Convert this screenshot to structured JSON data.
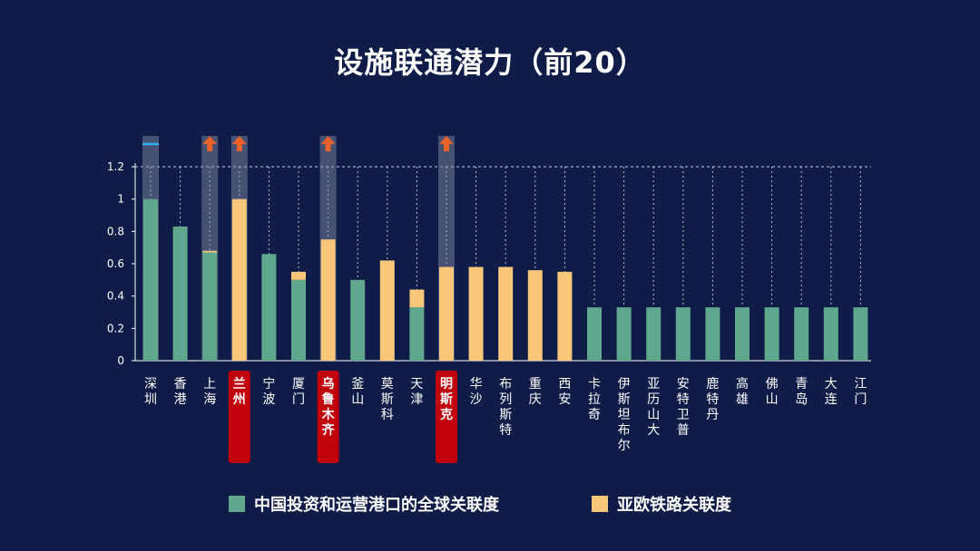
{
  "chart_data": {
    "type": "bar",
    "title": "设施联通潜力（前20）",
    "ylim": [
      0,
      1.2
    ],
    "yticks": [
      "0",
      "0.2",
      "0.4",
      "0.6",
      "0.8",
      "1",
      "1.2"
    ],
    "categories": [
      "深圳",
      "香港",
      "上海",
      "兰州",
      "宁波",
      "厦门",
      "乌鲁木齐",
      "釜山",
      "莫斯科",
      "天津",
      "明斯克",
      "华沙",
      "布列斯特",
      "重庆",
      "西安",
      "卡拉奇",
      "伊斯坦布尔",
      "亚历山大",
      "安特卫普",
      "鹿特丹",
      "高雄",
      "佛山",
      "青岛",
      "大连",
      "江门"
    ],
    "highlighted": [
      "兰州",
      "乌鲁木齐",
      "明斯克"
    ],
    "potential_up": [
      "上海",
      "兰州",
      "乌鲁木齐",
      "明斯克"
    ],
    "series": [
      {
        "name": "中国投资和运营港口的全球关联度",
        "color": "#5fa88e",
        "values": [
          1.0,
          0.83,
          0.67,
          0,
          0.66,
          0.5,
          0,
          0.5,
          0,
          0.33,
          0,
          0,
          0,
          0,
          0,
          0.33,
          0.33,
          0.33,
          0.33,
          0.33,
          0.33,
          0.33,
          0.33,
          0.33,
          0.33
        ]
      },
      {
        "name": "亚欧铁路关联度",
        "color": "#f8c77a",
        "values": [
          0,
          0,
          0.01,
          1.0,
          0,
          0.05,
          0.75,
          0,
          0.62,
          0.11,
          0.58,
          0.58,
          0.58,
          0.56,
          0.55,
          0,
          0,
          0,
          0,
          0,
          0,
          0,
          0,
          0,
          0
        ]
      }
    ],
    "grid": true
  },
  "colors": {
    "background": "#0f1c48",
    "highlight": "#c0000b",
    "arrow": "#e8622a",
    "marker": "#2db4ef"
  }
}
